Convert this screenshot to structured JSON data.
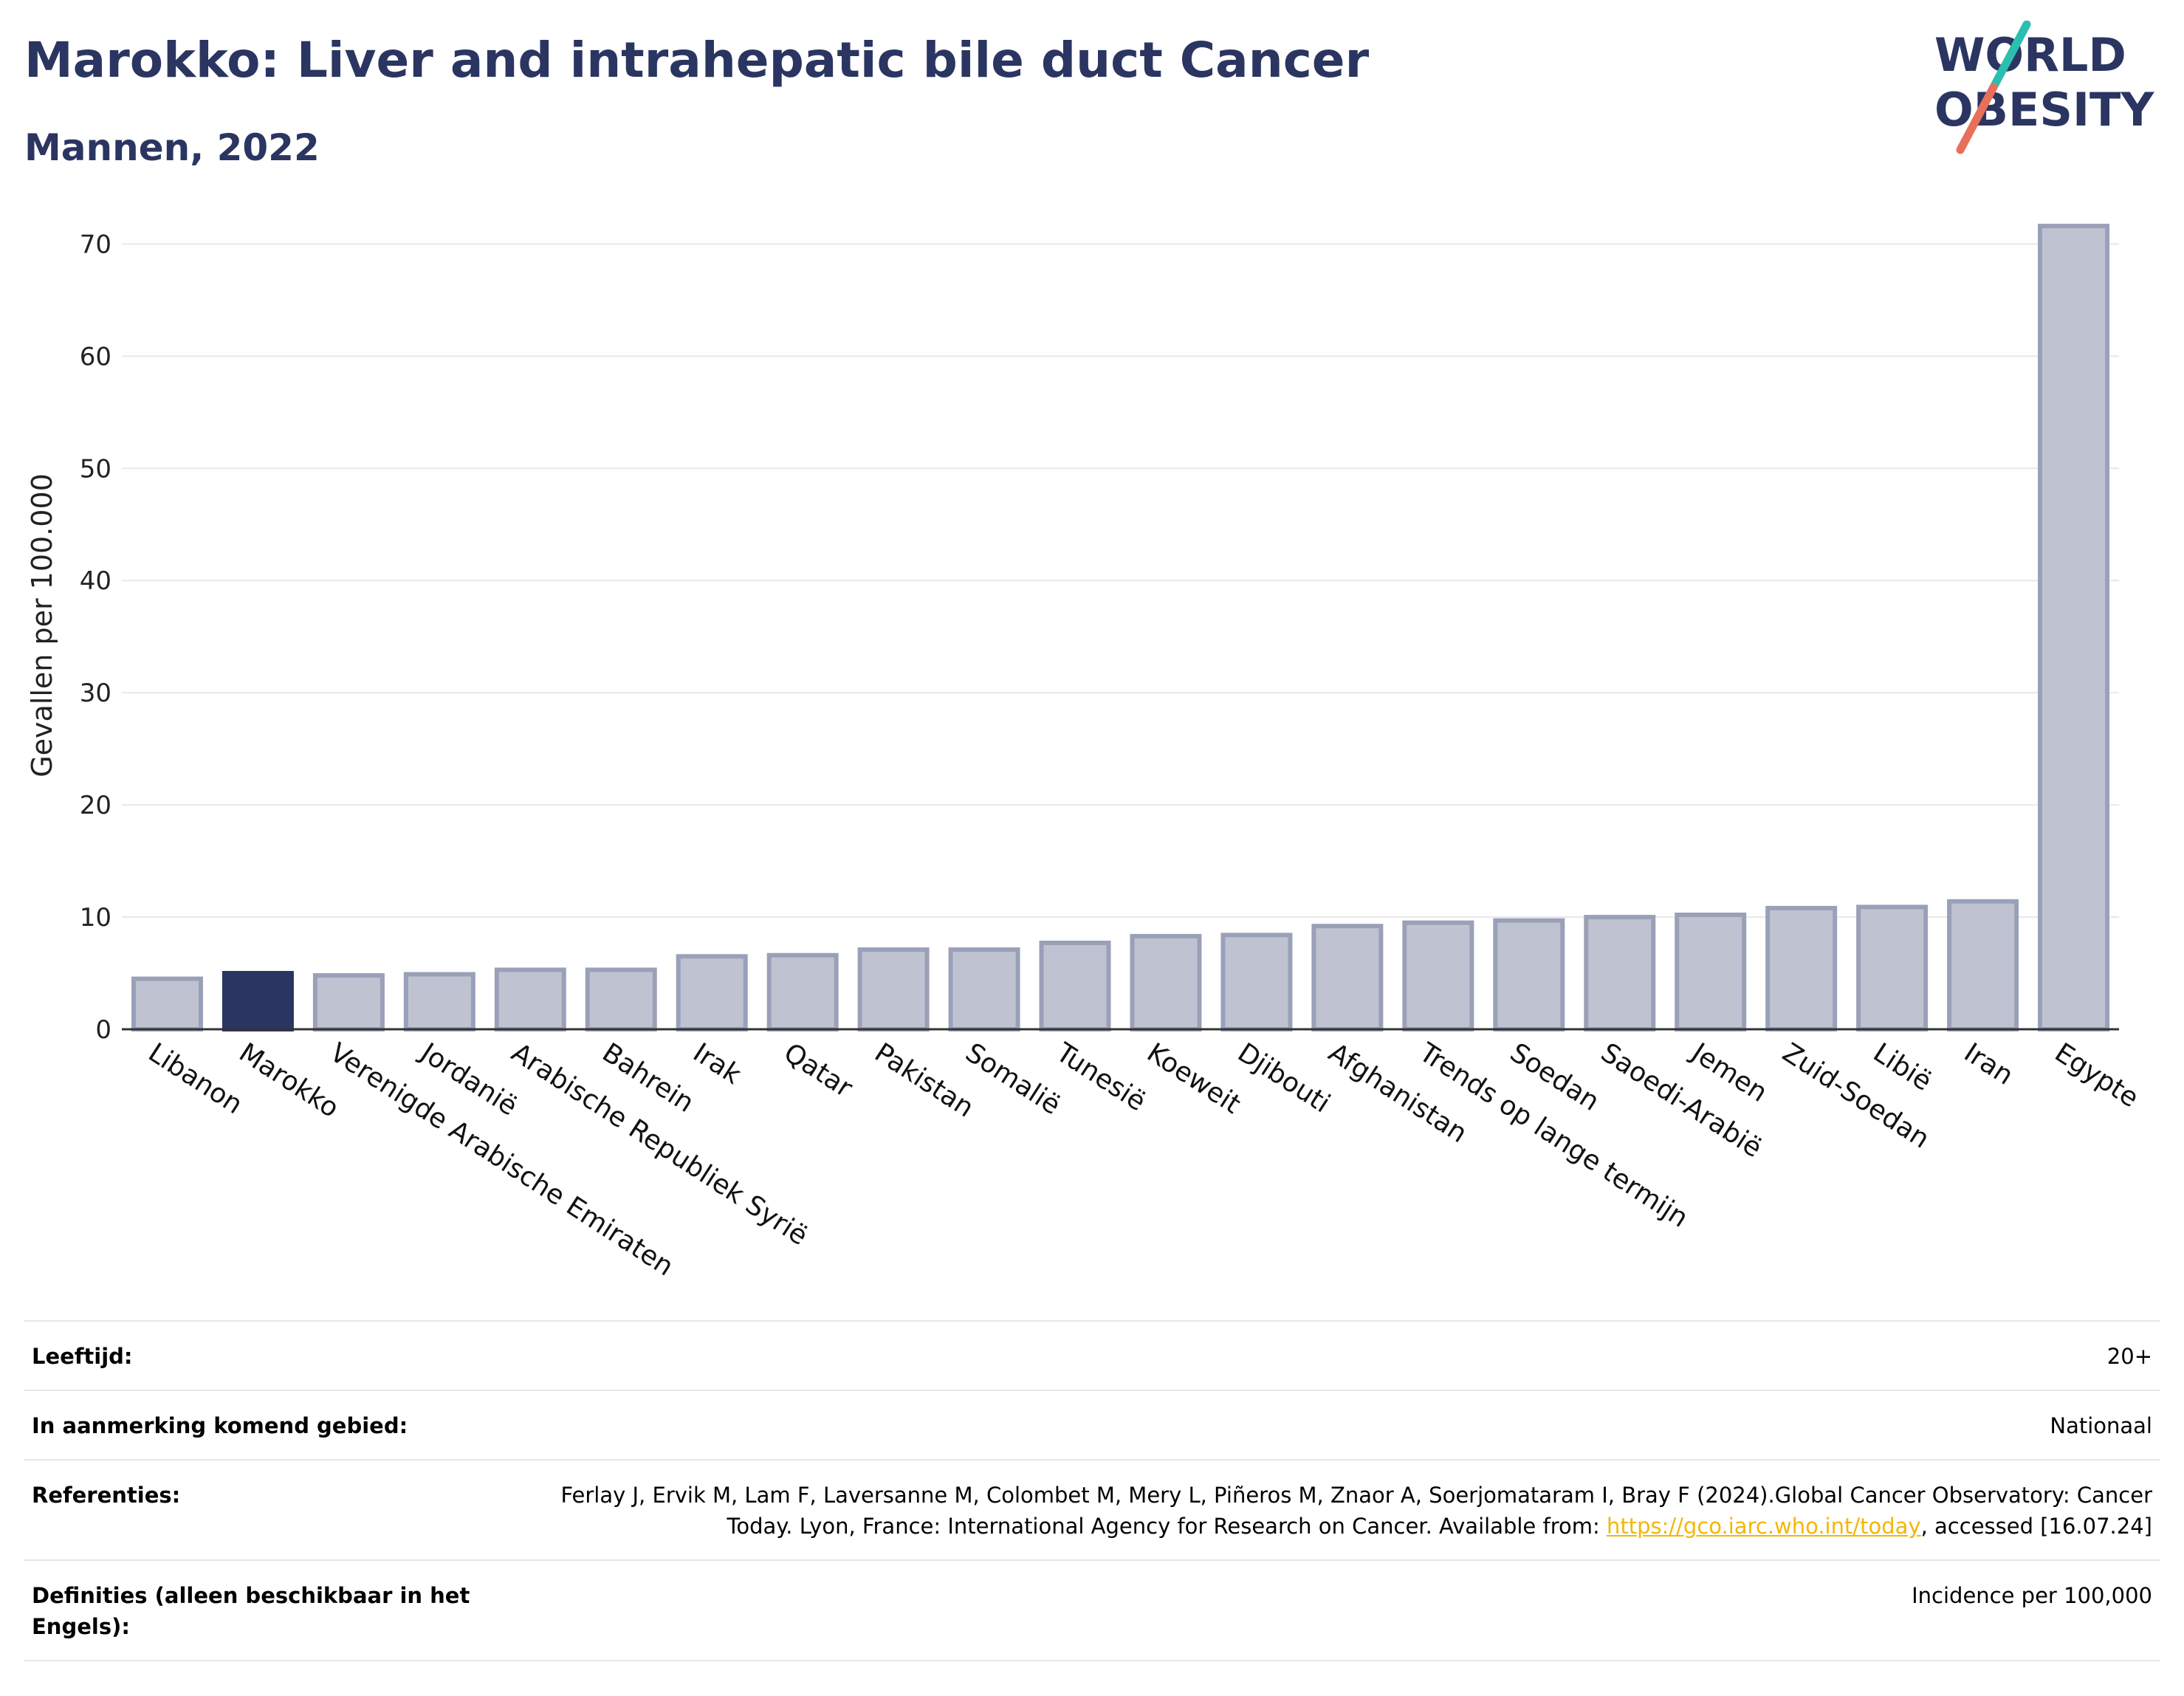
{
  "header": {
    "title": "Marokko: Liver and intrahepatic bile duct Cancer",
    "subtitle": "Mannen, 2022"
  },
  "logo": {
    "line1": "WORLD",
    "line2": "OBESITY",
    "colors": {
      "text": "#2b3561",
      "slash_teal": "#2bbfb0",
      "slash_red": "#e8705a"
    }
  },
  "colors": {
    "highlight": "#2b3561",
    "bar_fill": "#bfc3d1",
    "bar_stroke": "#9aa0b8",
    "grid": "#e8e8ec",
    "axis": "#333333",
    "link": "#f2b705"
  },
  "chart_data": {
    "type": "bar",
    "title": "Marokko: Liver and intrahepatic bile duct Cancer",
    "subtitle": "Mannen, 2022",
    "ylabel": "Gevallen per 100.000",
    "xlabel": "",
    "ylim": [
      0,
      72
    ],
    "yticks": [
      0,
      10,
      20,
      30,
      40,
      50,
      60,
      70
    ],
    "grid": true,
    "highlight": "Marokko",
    "categories": [
      "Libanon",
      "Marokko",
      "Verenigde Arabische Emiraten",
      "Jordanië",
      "Arabische Republiek Syrië",
      "Bahrein",
      "Irak",
      "Qatar",
      "Pakistan",
      "Somalië",
      "Tunesië",
      "Koeweit",
      "Djibouti",
      "Afghanistan",
      "Trends op lange termijn",
      "Soedan",
      "Saoedi-Arabië",
      "Jemen",
      "Zuid-Soedan",
      "Libië",
      "Iran",
      "Egypte"
    ],
    "values": [
      4.5,
      5.0,
      4.8,
      4.9,
      5.3,
      5.3,
      6.5,
      6.6,
      7.1,
      7.1,
      7.7,
      8.3,
      8.4,
      9.2,
      9.5,
      9.7,
      10.0,
      10.2,
      10.8,
      10.9,
      11.4,
      71.6
    ]
  },
  "info": [
    {
      "label": "Leeftijd:",
      "value": "20+"
    },
    {
      "label": "In aanmerking komend gebied:",
      "value": "Nationaal"
    },
    {
      "label": "Referenties:",
      "value_before": "Ferlay J, Ervik M, Lam F, Laversanne M, Colombet M, Mery L, Piñeros M, Znaor A, Soerjomataram I, Bray F (2024).Global Cancer Observatory: Cancer Today. Lyon, France: International Agency for Research on Cancer. Available from: ",
      "link": "https://gco.iarc.who.int/today",
      "value_after": ", accessed [16.07.24]"
    },
    {
      "label": "Definities (alleen beschikbaar in het Engels):",
      "value": "Incidence per 100,000"
    }
  ]
}
